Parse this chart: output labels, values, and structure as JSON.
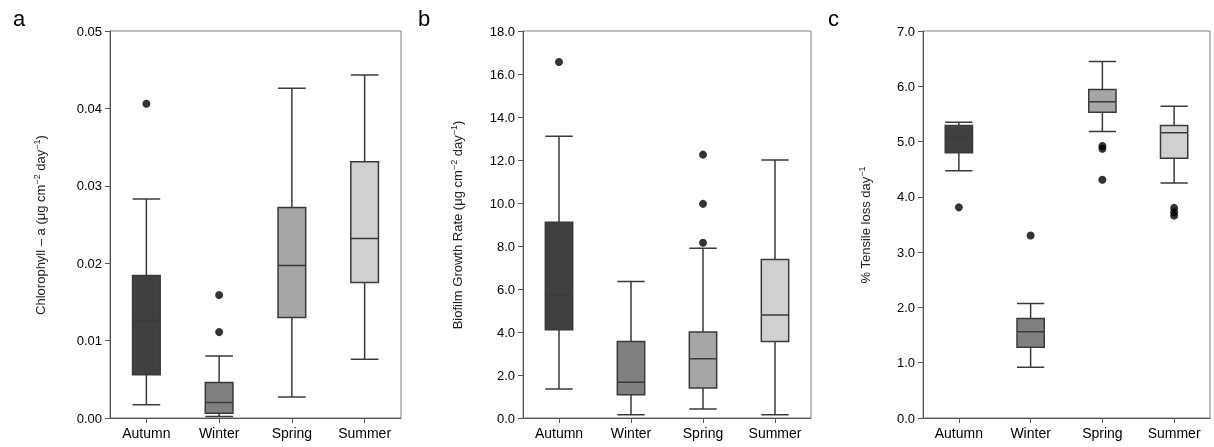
{
  "chart_data": [
    {
      "type": "box",
      "title": "a",
      "ylabel": "Chlorophyll – a (μg cm$^{−2}$ day$^{−1}$)",
      "categories": [
        "Autumn",
        "Winter",
        "Spring",
        "Summer"
      ],
      "colors": [
        "#404040",
        "#808080",
        "#a6a6a6",
        "#d0d0d0"
      ],
      "boxes": [
        {
          "low": 0.0017,
          "q1": 0.0056,
          "median": 0.0126,
          "q3": 0.0184,
          "high": 0.0283,
          "outliers": [
            0.0406
          ]
        },
        {
          "low": 0.0002,
          "q1": 0.0006,
          "median": 0.002,
          "q3": 0.0046,
          "high": 0.008,
          "outliers": [
            0.0159,
            0.0111
          ]
        },
        {
          "low": 0.0027,
          "q1": 0.013,
          "median": 0.0197,
          "q3": 0.0272,
          "high": 0.0426
        },
        {
          "low": 0.0076,
          "q1": 0.0175,
          "median": 0.0232,
          "q3": 0.0331,
          "high": 0.0443
        }
      ],
      "ylim": [
        0,
        0.05
      ],
      "yticks": [
        {
          "value": 0,
          "label": "0.00"
        },
        0.01,
        0.02,
        0.03,
        0.04,
        0.05
      ]
    },
    {
      "type": "box",
      "title": "b",
      "ylabel": "Biofilm Growth Rate (μg cm$^{−2}$ day$^{−1}$)",
      "categories": [
        "Autumn",
        "Winter",
        "Spring",
        "Summer"
      ],
      "colors": [
        "#404040",
        "#808080",
        "#a6a6a6",
        "#d0d0d0"
      ],
      "boxes": [
        {
          "low": 1.35,
          "q1": 4.1,
          "median": 5.7,
          "q3": 9.1,
          "high": 13.1,
          "outliers": [
            16.56
          ]
        },
        {
          "low": 0.15,
          "q1": 1.08,
          "median": 1.66,
          "q3": 3.56,
          "high": 6.35
        },
        {
          "low": 0.42,
          "q1": 1.39,
          "median": 2.76,
          "q3": 4.0,
          "high": 7.9,
          "outliers": [
            12.25,
            9.96,
            8.15
          ]
        },
        {
          "low": 0.15,
          "q1": 3.56,
          "median": 4.79,
          "q3": 7.37,
          "high": 12.0
        }
      ],
      "ylim": [
        0,
        18
      ],
      "yticks": [
        {
          "value": 0,
          "label": "0.0"
        },
        {
          "value": 2,
          "label": "2.0"
        },
        {
          "value": 4,
          "label": "4.0"
        },
        {
          "value": 6,
          "label": "6.0"
        },
        {
          "value": 8,
          "label": "8.0"
        },
        {
          "value": 10,
          "label": "10.0"
        },
        {
          "value": 12,
          "label": "12.0"
        },
        {
          "value": 14,
          "label": "14.0"
        },
        {
          "value": 16,
          "label": "16.0"
        },
        {
          "value": 18,
          "label": "18.0"
        }
      ]
    },
    {
      "type": "box",
      "title": "c",
      "ylabel": "% Tensile loss  day$^{−1}$",
      "categories": [
        "Autumn",
        "Winter",
        "Spring",
        "Summer"
      ],
      "colors": [
        "#404040",
        "#808080",
        "#a6a6a6",
        "#d0d0d0"
      ],
      "boxes": [
        {
          "low": 4.47,
          "q1": 4.8,
          "median": 5.08,
          "q3": 5.29,
          "high": 5.35,
          "outliers": [
            3.81
          ]
        },
        {
          "low": 0.92,
          "q1": 1.28,
          "median": 1.56,
          "q3": 1.8,
          "high": 2.07,
          "outliers": [
            3.3
          ]
        },
        {
          "low": 5.18,
          "q1": 5.53,
          "median": 5.72,
          "q3": 5.94,
          "high": 6.45,
          "outliers": [
            4.92,
            4.87,
            4.31
          ]
        },
        {
          "low": 4.25,
          "q1": 4.7,
          "median": 5.16,
          "q3": 5.29,
          "high": 5.64,
          "outliers": [
            3.8,
            3.72,
            3.66
          ]
        }
      ],
      "ylim": [
        0,
        7
      ],
      "yticks": [
        {
          "value": 0,
          "label": "0.0"
        },
        {
          "value": 1,
          "label": "1.0"
        },
        {
          "value": 2,
          "label": "2.0"
        },
        {
          "value": 3,
          "label": "3.0"
        },
        {
          "value": 4,
          "label": "4.0"
        },
        {
          "value": 5,
          "label": "5.0"
        },
        {
          "value": 6,
          "label": "6.0"
        },
        {
          "value": 7,
          "label": "7.0"
        }
      ]
    }
  ]
}
